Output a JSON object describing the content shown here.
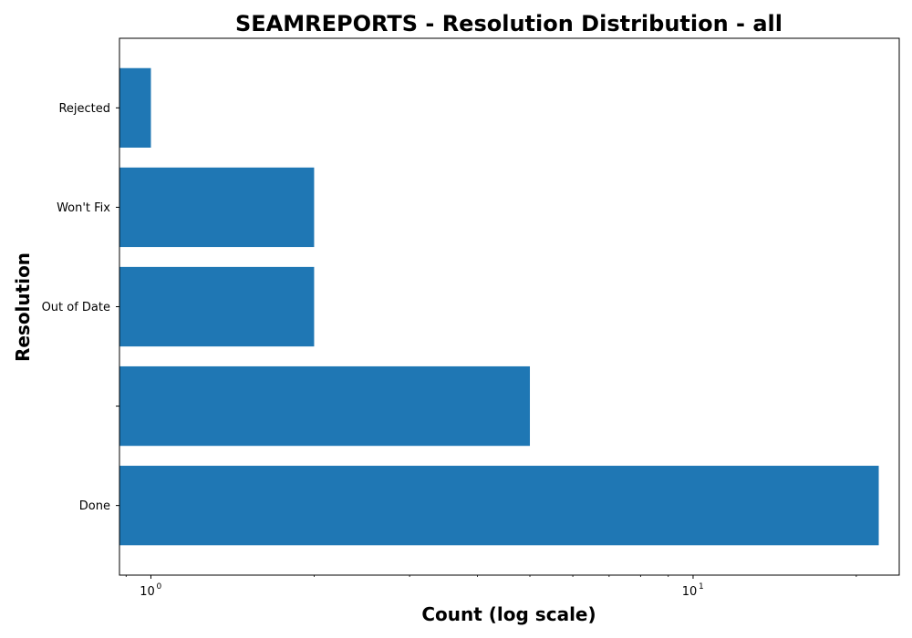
{
  "chart_data": {
    "type": "bar",
    "orientation": "horizontal",
    "title": "SEAMREPORTS - Resolution Distribution - all",
    "xlabel": "Count (log scale)",
    "ylabel": "Resolution",
    "x_scale": "log",
    "xlim": [
      0.875,
      24
    ],
    "x_ticks": [
      {
        "value": 1,
        "base": "10",
        "exp": "0"
      },
      {
        "value": 10,
        "base": "10",
        "exp": "1"
      }
    ],
    "categories": [
      "Done",
      "",
      "Out of Date",
      "Won't Fix",
      "Rejected"
    ],
    "values": [
      22,
      5,
      2,
      2,
      1
    ],
    "bar_color": "#1f77b4",
    "grid": false,
    "legend": "none"
  }
}
